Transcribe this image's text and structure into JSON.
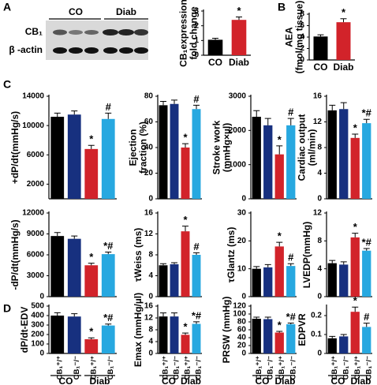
{
  "panel_labels": [
    "A",
    "B",
    "C",
    "D"
  ],
  "blot": {
    "groups": [
      "CO",
      "Diab"
    ],
    "rows": [
      "CB₁",
      "β -actin"
    ]
  },
  "chart_data": [
    {
      "type": "bar",
      "ylabel": [
        "CB₁expression",
        "fold change"
      ],
      "categories": [
        "CO",
        "Diab"
      ],
      "values": [
        1.05,
        2.4
      ],
      "errors": [
        0.1,
        0.2
      ],
      "colors": [
        "#000000",
        "#d2232a"
      ],
      "markers": [
        null,
        "*"
      ],
      "ylim": [
        0,
        3
      ],
      "yticks": [
        0,
        1,
        2,
        3
      ]
    },
    {
      "type": "bar",
      "ylabel": [
        "AEA",
        "(fmol/mg tissue)"
      ],
      "categories": [
        "CO",
        "Diab"
      ],
      "values": [
        4.1,
        6.6
      ],
      "errors": [
        0.3,
        0.6
      ],
      "colors": [
        "#000000",
        "#d2232a"
      ],
      "markers": [
        null,
        "*"
      ],
      "ylim": [
        0,
        8
      ],
      "yticks": [
        0,
        2,
        4,
        6,
        8
      ]
    },
    {
      "type": "bar",
      "ylabel": [
        "+dP/dt(mmHg/s)"
      ],
      "categories": [
        null,
        null,
        null,
        null
      ],
      "values": [
        11200,
        11500,
        6800,
        10900
      ],
      "errors": [
        500,
        500,
        500,
        800
      ],
      "colors": [
        "#000000",
        "#17307f",
        "#d2232a",
        "#27a8e0"
      ],
      "markers": [
        null,
        null,
        "*",
        "#"
      ],
      "ylim": [
        0,
        14000
      ],
      "yticks": [
        2000,
        6000,
        10000,
        14000
      ]
    },
    {
      "type": "bar",
      "ylabel": [
        "Ejection",
        "fraction (%)"
      ],
      "categories": [
        null,
        null,
        null,
        null
      ],
      "values": [
        73,
        74,
        40,
        70
      ],
      "errors": [
        3,
        3,
        3,
        3
      ],
      "colors": [
        "#000000",
        "#17307f",
        "#d2232a",
        "#27a8e0"
      ],
      "markers": [
        null,
        null,
        "*",
        "#"
      ],
      "ylim": [
        0,
        80
      ],
      "yticks": [
        0,
        20,
        40,
        60,
        80
      ]
    },
    {
      "type": "bar",
      "ylabel": [
        "Stroke work",
        "(mmHg×µl)"
      ],
      "categories": [
        null,
        null,
        null,
        null
      ],
      "values": [
        2400,
        2150,
        1300,
        2150
      ],
      "errors": [
        180,
        200,
        250,
        200
      ],
      "colors": [
        "#000000",
        "#17307f",
        "#d2232a",
        "#27a8e0"
      ],
      "markers": [
        null,
        null,
        "*",
        "#"
      ],
      "ylim": [
        0,
        3000
      ],
      "yticks": [
        0,
        1000,
        2000,
        3000
      ]
    },
    {
      "type": "bar",
      "ylabel": [
        "Cardiac output",
        "(ml/min)"
      ],
      "categories": [
        null,
        null,
        null,
        null
      ],
      "values": [
        13.8,
        14,
        9.5,
        11.8
      ],
      "errors": [
        0.8,
        1,
        0.6,
        0.6
      ],
      "colors": [
        "#000000",
        "#17307f",
        "#d2232a",
        "#27a8e0"
      ],
      "markers": [
        null,
        null,
        "*",
        "*#"
      ],
      "ylim": [
        0,
        16
      ],
      "yticks": [
        0,
        4,
        8,
        12,
        16
      ]
    },
    {
      "type": "bar",
      "ylabel": [
        "-dP/dt(mmHg/s)"
      ],
      "categories": [
        null,
        null,
        null,
        null
      ],
      "values": [
        8700,
        8300,
        4500,
        6100
      ],
      "errors": [
        500,
        400,
        300,
        300
      ],
      "colors": [
        "#000000",
        "#17307f",
        "#d2232a",
        "#27a8e0"
      ],
      "markers": [
        null,
        null,
        "*",
        "*#"
      ],
      "ylim": [
        0,
        12000
      ],
      "yticks": [
        0,
        3000,
        6000,
        9000,
        12000
      ]
    },
    {
      "type": "bar",
      "ylabel": [
        "τWeiss (ms)"
      ],
      "categories": [
        null,
        null,
        null,
        null
      ],
      "values": [
        6,
        6.2,
        12.5,
        8
      ],
      "errors": [
        0.3,
        0.3,
        1,
        0.4
      ],
      "colors": [
        "#000000",
        "#17307f",
        "#d2232a",
        "#27a8e0"
      ],
      "markers": [
        null,
        null,
        "*",
        "#"
      ],
      "ylim": [
        0,
        16
      ],
      "yticks": [
        0,
        4,
        8,
        12,
        16
      ]
    },
    {
      "type": "bar",
      "ylabel": [
        "τGlantz (ms)"
      ],
      "categories": [
        null,
        null,
        null,
        null
      ],
      "values": [
        10,
        10.5,
        18,
        11
      ],
      "errors": [
        0.8,
        1,
        1.5,
        0.8
      ],
      "colors": [
        "#000000",
        "#17307f",
        "#d2232a",
        "#27a8e0"
      ],
      "markers": [
        null,
        null,
        "*",
        "#"
      ],
      "ylim": [
        0,
        30
      ],
      "yticks": [
        0,
        10,
        20,
        30
      ]
    },
    {
      "type": "bar",
      "ylabel": [
        "LVEDP(mmHg)"
      ],
      "categories": [
        null,
        null,
        null,
        null
      ],
      "values": [
        4.8,
        4.6,
        8.5,
        6.6
      ],
      "errors": [
        0.4,
        0.4,
        0.6,
        0.3
      ],
      "colors": [
        "#000000",
        "#17307f",
        "#d2232a",
        "#27a8e0"
      ],
      "markers": [
        null,
        null,
        "*",
        "*#"
      ],
      "ylim": [
        0,
        12
      ],
      "yticks": [
        0,
        4,
        8,
        12
      ]
    },
    {
      "type": "bar",
      "ylabel": [
        "dP/dt-EDV"
      ],
      "categories": [
        "CB₁⁺/⁺",
        "CB₁⁻/⁻",
        "CB₁⁺/⁺",
        "CB₁⁻/⁻"
      ],
      "groups": [
        "CO",
        "Diab"
      ],
      "values": [
        400,
        390,
        150,
        295
      ],
      "errors": [
        30,
        30,
        15,
        15
      ],
      "colors": [
        "#000000",
        "#17307f",
        "#d2232a",
        "#27a8e0"
      ],
      "markers": [
        null,
        null,
        "*",
        "*#"
      ],
      "ylim": [
        0,
        500
      ],
      "yticks": [
        0,
        100,
        200,
        300,
        400,
        500
      ]
    },
    {
      "type": "bar",
      "ylabel": [
        "Emax (mmHg/µl)"
      ],
      "categories": [
        "CB₁⁺/⁺",
        "CB₁⁻/⁻",
        "CB₁⁺/⁺",
        "CB₁⁻/⁻"
      ],
      "groups": [
        "CO",
        "Diab"
      ],
      "values": [
        12.5,
        12.5,
        6.3,
        10
      ],
      "errors": [
        1.2,
        1.2,
        0.6,
        0.7
      ],
      "colors": [
        "#000000",
        "#17307f",
        "#d2232a",
        "#27a8e0"
      ],
      "markers": [
        null,
        null,
        "*",
        "*#"
      ],
      "ylim": [
        0,
        16
      ],
      "yticks": [
        0,
        4,
        8,
        12,
        16
      ]
    },
    {
      "type": "bar",
      "ylabel": [
        "PRSW (mmHg)"
      ],
      "categories": [
        "CB₁⁺/⁺",
        "CB₁⁻/⁻",
        "CB₁⁺/⁺",
        "CB₁⁻/⁻"
      ],
      "groups": [
        "CO",
        "Diab"
      ],
      "values": [
        88,
        87,
        53,
        74
      ],
      "errors": [
        4,
        5,
        3,
        3
      ],
      "colors": [
        "#000000",
        "#17307f",
        "#d2232a",
        "#27a8e0"
      ],
      "markers": [
        null,
        null,
        "*",
        "*#"
      ],
      "ylim": [
        0,
        120
      ],
      "yticks": [
        0,
        20,
        40,
        60,
        80,
        100,
        120
      ]
    },
    {
      "type": "bar",
      "ylabel": [
        "EDPVR"
      ],
      "categories": [
        "CB₁⁺/⁺",
        "CB₁⁻/⁻",
        "CB₁⁺/⁺",
        "CB₁⁻/⁻"
      ],
      "groups": [
        "CO",
        "Diab"
      ],
      "values": [
        0.08,
        0.09,
        0.22,
        0.14
      ],
      "errors": [
        0.01,
        0.01,
        0.025,
        0.02
      ],
      "colors": [
        "#000000",
        "#17307f",
        "#d2232a",
        "#27a8e0"
      ],
      "markers": [
        null,
        null,
        "*",
        "#"
      ],
      "ylim": [
        0,
        0.25
      ],
      "yticks": [
        0,
        0.1,
        0.2
      ]
    }
  ]
}
